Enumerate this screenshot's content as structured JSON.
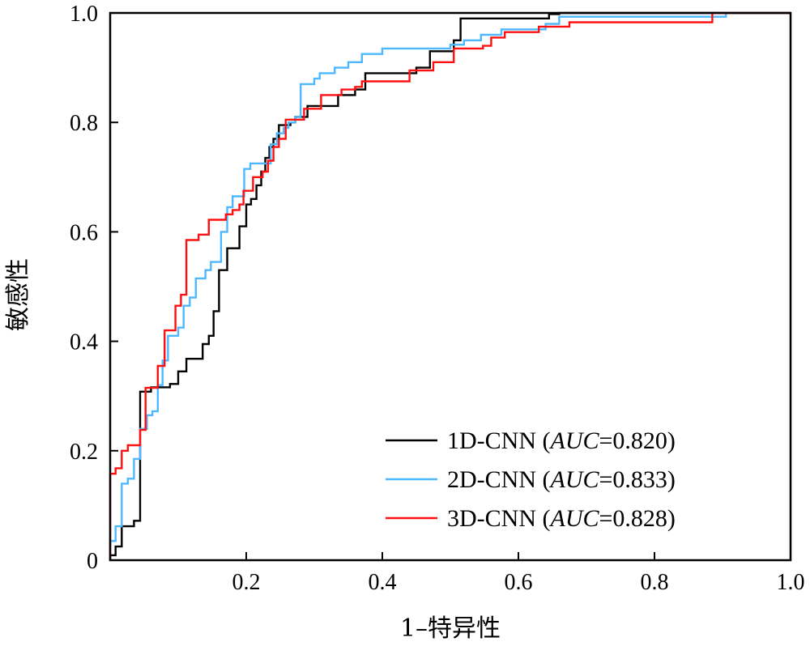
{
  "chart_data": {
    "type": "line",
    "title": "",
    "xlabel": "1–特异性",
    "ylabel": "敏感性",
    "xlim": [
      0,
      1.0
    ],
    "ylim": [
      0,
      1.0
    ],
    "xticks": [
      0.2,
      0.4,
      0.6,
      0.8,
      1.0
    ],
    "xtick_labels": [
      "0.2",
      "0.4",
      "0.6",
      "0.8",
      "1.0"
    ],
    "yticks": [
      0,
      0.2,
      0.4,
      0.6,
      0.8,
      1.0
    ],
    "ytick_labels": [
      "0",
      "0.2",
      "0.4",
      "0.6",
      "0.8",
      "1.0"
    ],
    "grid": false,
    "legend_position": "bottom-right",
    "series": [
      {
        "name": "1D-CNN",
        "label_prefix": "1D-CNN (",
        "label_metric": "AUC",
        "label_suffix": "=0.820)",
        "auc": 0.82,
        "color": "#000000",
        "step_points": [
          [
            0,
            0
          ],
          [
            0,
            0.009
          ],
          [
            0.008,
            0.009
          ],
          [
            0.008,
            0.025
          ],
          [
            0.017,
            0.025
          ],
          [
            0.017,
            0.062
          ],
          [
            0.035,
            0.062
          ],
          [
            0.035,
            0.072
          ],
          [
            0.044,
            0.072
          ],
          [
            0.044,
            0.308
          ],
          [
            0.06,
            0.308
          ],
          [
            0.06,
            0.316
          ],
          [
            0.088,
            0.316
          ],
          [
            0.088,
            0.322
          ],
          [
            0.1,
            0.322
          ],
          [
            0.1,
            0.345
          ],
          [
            0.112,
            0.345
          ],
          [
            0.112,
            0.368
          ],
          [
            0.136,
            0.368
          ],
          [
            0.136,
            0.395
          ],
          [
            0.145,
            0.395
          ],
          [
            0.145,
            0.41
          ],
          [
            0.152,
            0.41
          ],
          [
            0.152,
            0.455
          ],
          [
            0.16,
            0.455
          ],
          [
            0.16,
            0.53
          ],
          [
            0.172,
            0.53
          ],
          [
            0.172,
            0.57
          ],
          [
            0.19,
            0.57
          ],
          [
            0.19,
            0.61
          ],
          [
            0.2,
            0.61
          ],
          [
            0.2,
            0.65
          ],
          [
            0.207,
            0.65
          ],
          [
            0.207,
            0.66
          ],
          [
            0.215,
            0.66
          ],
          [
            0.215,
            0.685
          ],
          [
            0.222,
            0.685
          ],
          [
            0.222,
            0.71
          ],
          [
            0.228,
            0.71
          ],
          [
            0.228,
            0.735
          ],
          [
            0.234,
            0.735
          ],
          [
            0.234,
            0.755
          ],
          [
            0.24,
            0.755
          ],
          [
            0.24,
            0.77
          ],
          [
            0.248,
            0.77
          ],
          [
            0.248,
            0.795
          ],
          [
            0.265,
            0.795
          ],
          [
            0.265,
            0.8
          ],
          [
            0.272,
            0.8
          ],
          [
            0.272,
            0.81
          ],
          [
            0.29,
            0.81
          ],
          [
            0.29,
            0.83
          ],
          [
            0.335,
            0.83
          ],
          [
            0.335,
            0.85
          ],
          [
            0.36,
            0.85
          ],
          [
            0.36,
            0.86
          ],
          [
            0.375,
            0.86
          ],
          [
            0.375,
            0.89
          ],
          [
            0.45,
            0.89
          ],
          [
            0.45,
            0.9
          ],
          [
            0.47,
            0.9
          ],
          [
            0.47,
            0.93
          ],
          [
            0.505,
            0.93
          ],
          [
            0.505,
            0.95
          ],
          [
            0.515,
            0.95
          ],
          [
            0.515,
            0.99
          ],
          [
            0.645,
            0.99
          ],
          [
            0.645,
            0.998
          ],
          [
            0.66,
            0.998
          ],
          [
            0.66,
            1.0
          ],
          [
            1.0,
            1.0
          ]
        ]
      },
      {
        "name": "2D-CNN",
        "label_prefix": "2D-CNN (",
        "label_metric": "AUC",
        "label_suffix": "=0.833)",
        "auc": 0.833,
        "color": "#4db8ff",
        "step_points": [
          [
            0,
            0
          ],
          [
            0,
            0.035
          ],
          [
            0.008,
            0.035
          ],
          [
            0.008,
            0.062
          ],
          [
            0.017,
            0.062
          ],
          [
            0.017,
            0.14
          ],
          [
            0.026,
            0.14
          ],
          [
            0.026,
            0.149
          ],
          [
            0.035,
            0.149
          ],
          [
            0.035,
            0.185
          ],
          [
            0.044,
            0.185
          ],
          [
            0.044,
            0.24
          ],
          [
            0.054,
            0.24
          ],
          [
            0.054,
            0.265
          ],
          [
            0.062,
            0.265
          ],
          [
            0.062,
            0.272
          ],
          [
            0.07,
            0.272
          ],
          [
            0.07,
            0.32
          ],
          [
            0.077,
            0.32
          ],
          [
            0.077,
            0.365
          ],
          [
            0.085,
            0.365
          ],
          [
            0.085,
            0.41
          ],
          [
            0.1,
            0.41
          ],
          [
            0.1,
            0.425
          ],
          [
            0.108,
            0.425
          ],
          [
            0.108,
            0.465
          ],
          [
            0.117,
            0.465
          ],
          [
            0.117,
            0.48
          ],
          [
            0.126,
            0.48
          ],
          [
            0.126,
            0.515
          ],
          [
            0.14,
            0.515
          ],
          [
            0.14,
            0.53
          ],
          [
            0.148,
            0.53
          ],
          [
            0.148,
            0.545
          ],
          [
            0.163,
            0.545
          ],
          [
            0.163,
            0.6
          ],
          [
            0.172,
            0.6
          ],
          [
            0.172,
            0.645
          ],
          [
            0.18,
            0.645
          ],
          [
            0.18,
            0.665
          ],
          [
            0.197,
            0.665
          ],
          [
            0.197,
            0.715
          ],
          [
            0.206,
            0.715
          ],
          [
            0.206,
            0.725
          ],
          [
            0.236,
            0.725
          ],
          [
            0.236,
            0.76
          ],
          [
            0.245,
            0.76
          ],
          [
            0.245,
            0.78
          ],
          [
            0.255,
            0.78
          ],
          [
            0.255,
            0.79
          ],
          [
            0.262,
            0.79
          ],
          [
            0.262,
            0.8
          ],
          [
            0.272,
            0.8
          ],
          [
            0.272,
            0.81
          ],
          [
            0.28,
            0.81
          ],
          [
            0.28,
            0.87
          ],
          [
            0.3,
            0.87
          ],
          [
            0.3,
            0.88
          ],
          [
            0.308,
            0.88
          ],
          [
            0.308,
            0.89
          ],
          [
            0.33,
            0.89
          ],
          [
            0.33,
            0.9
          ],
          [
            0.35,
            0.9
          ],
          [
            0.35,
            0.91
          ],
          [
            0.37,
            0.91
          ],
          [
            0.37,
            0.925
          ],
          [
            0.4,
            0.925
          ],
          [
            0.4,
            0.935
          ],
          [
            0.5,
            0.935
          ],
          [
            0.5,
            0.942
          ],
          [
            0.52,
            0.942
          ],
          [
            0.52,
            0.95
          ],
          [
            0.545,
            0.95
          ],
          [
            0.545,
            0.96
          ],
          [
            0.575,
            0.96
          ],
          [
            0.575,
            0.97
          ],
          [
            0.64,
            0.97
          ],
          [
            0.64,
            0.98
          ],
          [
            0.66,
            0.98
          ],
          [
            0.66,
            0.993
          ],
          [
            0.905,
            0.993
          ],
          [
            0.905,
            1.0
          ],
          [
            1.0,
            1.0
          ]
        ]
      },
      {
        "name": "3D-CNN",
        "label_prefix": "3D-CNN (",
        "label_metric": "AUC",
        "label_suffix": "=0.828)",
        "auc": 0.828,
        "color": "#ff1010",
        "step_points": [
          [
            0,
            0
          ],
          [
            0,
            0.158
          ],
          [
            0.008,
            0.158
          ],
          [
            0.008,
            0.168
          ],
          [
            0.017,
            0.168
          ],
          [
            0.017,
            0.2
          ],
          [
            0.026,
            0.2
          ],
          [
            0.026,
            0.21
          ],
          [
            0.044,
            0.21
          ],
          [
            0.044,
            0.238
          ],
          [
            0.052,
            0.238
          ],
          [
            0.052,
            0.315
          ],
          [
            0.07,
            0.315
          ],
          [
            0.07,
            0.355
          ],
          [
            0.08,
            0.355
          ],
          [
            0.08,
            0.42
          ],
          [
            0.096,
            0.42
          ],
          [
            0.096,
            0.465
          ],
          [
            0.104,
            0.465
          ],
          [
            0.104,
            0.485
          ],
          [
            0.112,
            0.485
          ],
          [
            0.112,
            0.585
          ],
          [
            0.13,
            0.585
          ],
          [
            0.13,
            0.595
          ],
          [
            0.145,
            0.595
          ],
          [
            0.145,
            0.622
          ],
          [
            0.17,
            0.622
          ],
          [
            0.17,
            0.632
          ],
          [
            0.18,
            0.632
          ],
          [
            0.18,
            0.64
          ],
          [
            0.19,
            0.64
          ],
          [
            0.19,
            0.65
          ],
          [
            0.196,
            0.65
          ],
          [
            0.196,
            0.675
          ],
          [
            0.21,
            0.675
          ],
          [
            0.21,
            0.7
          ],
          [
            0.224,
            0.7
          ],
          [
            0.224,
            0.71
          ],
          [
            0.232,
            0.71
          ],
          [
            0.232,
            0.73
          ],
          [
            0.24,
            0.73
          ],
          [
            0.24,
            0.755
          ],
          [
            0.248,
            0.755
          ],
          [
            0.248,
            0.77
          ],
          [
            0.258,
            0.77
          ],
          [
            0.258,
            0.805
          ],
          [
            0.285,
            0.805
          ],
          [
            0.285,
            0.825
          ],
          [
            0.31,
            0.825
          ],
          [
            0.31,
            0.85
          ],
          [
            0.34,
            0.85
          ],
          [
            0.34,
            0.86
          ],
          [
            0.36,
            0.86
          ],
          [
            0.36,
            0.865
          ],
          [
            0.37,
            0.865
          ],
          [
            0.37,
            0.875
          ],
          [
            0.44,
            0.875
          ],
          [
            0.44,
            0.895
          ],
          [
            0.475,
            0.895
          ],
          [
            0.475,
            0.91
          ],
          [
            0.505,
            0.91
          ],
          [
            0.505,
            0.935
          ],
          [
            0.548,
            0.935
          ],
          [
            0.548,
            0.94
          ],
          [
            0.56,
            0.94
          ],
          [
            0.56,
            0.955
          ],
          [
            0.58,
            0.955
          ],
          [
            0.58,
            0.965
          ],
          [
            0.63,
            0.965
          ],
          [
            0.63,
            0.975
          ],
          [
            0.675,
            0.975
          ],
          [
            0.675,
            0.983
          ],
          [
            0.885,
            0.983
          ],
          [
            0.885,
            1.0
          ],
          [
            1.0,
            1.0
          ]
        ]
      }
    ]
  }
}
